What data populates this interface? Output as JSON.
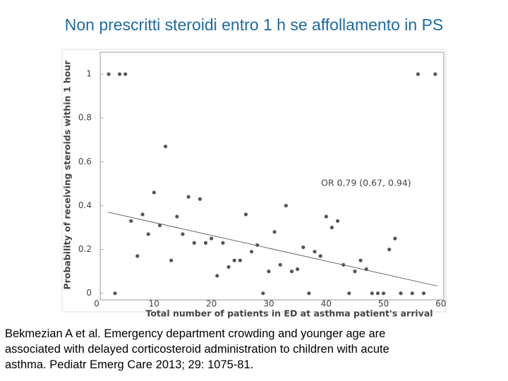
{
  "title": "Non prescritti steroidi entro 1 h se affollamento in PS",
  "chart_data": {
    "type": "scatter",
    "xlabel": "Total number of patients in ED at asthma patient's arrival",
    "ylabel": "Probability of receiving steroids within 1 hour",
    "annotation": "OR 0.79 (0.67, 0.94)",
    "xlim": [
      0,
      60.5
    ],
    "ylim": [
      -0.03,
      1.1
    ],
    "xticks": [
      0,
      10,
      20,
      30,
      40,
      50,
      60
    ],
    "yticks": [
      0,
      0.2,
      0.4,
      0.6,
      0.8,
      1
    ],
    "color": "#555555",
    "series": [
      {
        "x": [
          2.1,
          4,
          5,
          3.2,
          6,
          7.1,
          8,
          9,
          10,
          11,
          12,
          13,
          14,
          15,
          16,
          17,
          18,
          19,
          20,
          21,
          22,
          23,
          24,
          25,
          26,
          27,
          28,
          29,
          30,
          31,
          32,
          33,
          34,
          35,
          36,
          37,
          38,
          39,
          40,
          41,
          42,
          43,
          44,
          45,
          46,
          47,
          48,
          49,
          50,
          51,
          52,
          53,
          55,
          56,
          57,
          59
        ],
        "values": [
          1,
          1,
          1,
          0,
          0.33,
          0.17,
          0.36,
          0.27,
          0.46,
          0.31,
          0.67,
          0.15,
          0.35,
          0.27,
          0.44,
          0.23,
          0.43,
          0.23,
          0.25,
          0.08,
          0.23,
          0.12,
          0.15,
          0.15,
          0.36,
          0.19,
          0.22,
          0,
          0.1,
          0.28,
          0.13,
          0.4,
          0.1,
          0.11,
          0.21,
          0,
          0.19,
          0.17,
          0.35,
          0.3,
          0.33,
          0.13,
          0,
          0.1,
          0.15,
          0.11,
          0,
          0,
          0,
          0.2,
          0.25,
          0,
          0,
          1,
          0,
          1
        ]
      }
    ],
    "trend": {
      "x": [
        2,
        59.4
      ],
      "values": [
        0.37,
        0.033
      ]
    }
  },
  "citation": [
    "Bekmezian A et al. Emergency department crowding and younger age are",
    "associated with delayed corticosteroid administration to children with acute",
    "asthma. Pediatr Emerg Care 2013; 29: 1075-81."
  ]
}
